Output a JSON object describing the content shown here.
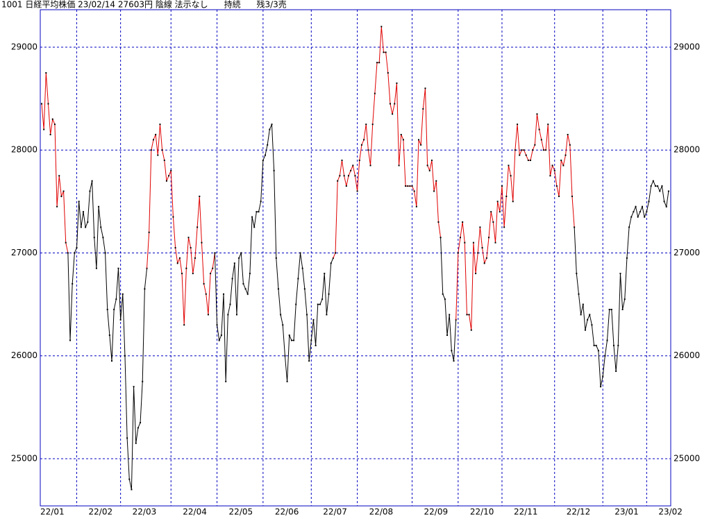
{
  "chart_data": {
    "type": "line",
    "title": "1001 日経平均株価 23/02/14 27603円 陰線 法示なし      持続      残3/3売",
    "series": [
      {
        "color": "#e00000",
        "values": [
          28450,
          28200,
          28750,
          28450,
          28150,
          28300,
          28250,
          27450,
          27750,
          27550,
          27600,
          27100,
          27000
        ]
      },
      {
        "color": "#000000",
        "values": [
          26150,
          26700,
          27000,
          27050,
          27500,
          27250,
          27400,
          27250,
          27300,
          27600,
          27700,
          27150,
          26850,
          27450,
          27250,
          27150,
          27000,
          26450,
          26200,
          25950,
          26450,
          26550,
          26850,
          26350,
          26600,
          26000,
          25200,
          24800,
          24700,
          25700,
          25150,
          25300,
          25350,
          25750,
          26650,
          26850
        ]
      },
      {
        "color": "#e00000",
        "values": [
          27200,
          28000,
          28100,
          28150,
          27950,
          28250,
          28000,
          27900,
          27700,
          27750,
          27800,
          27350,
          27050,
          26900,
          26950,
          26800,
          26300,
          26850,
          27150,
          27050,
          26800,
          26950,
          27250,
          27550,
          27100,
          26700,
          26600,
          26400,
          26800,
          26850,
          27000
        ]
      },
      {
        "color": "#000000",
        "values": [
          26300,
          26150,
          26200,
          26600,
          25750,
          26400,
          26500,
          26750,
          26900,
          26400,
          26950,
          27000,
          26700,
          26650,
          26600,
          26800,
          27350,
          27250,
          27400,
          27400,
          27500,
          27900,
          27950,
          28050,
          28200,
          28250,
          27800,
          26950,
          26650,
          26400,
          26300,
          26000,
          25750,
          26200,
          26150,
          26150,
          26500,
          26750,
          27000,
          26850,
          26650,
          26400,
          25950,
          26150,
          26350,
          26100,
          26500,
          26500,
          26550,
          26800,
          26400,
          26600,
          26900,
          26950
        ]
      },
      {
        "color": "#e00000",
        "values": [
          27000,
          27700,
          27750,
          27900,
          27750,
          27650,
          27750,
          27800,
          27850,
          27750,
          27600,
          27900,
          28050,
          28100,
          28250,
          28000,
          27850,
          28250,
          28550,
          28850,
          28850,
          29200,
          28950,
          28950,
          28750,
          28450,
          28350,
          28450,
          28650,
          27850,
          28150,
          28100,
          27650,
          27650,
          27650,
          27650,
          27600,
          27450,
          28100,
          28050,
          28400,
          28600,
          27850,
          27800,
          27900,
          27600,
          27700,
          27300,
          27150
        ]
      },
      {
        "color": "#000000",
        "values": [
          26600,
          26550,
          26200,
          26400,
          26050,
          25950,
          26350
        ]
      },
      {
        "color": "#e00000",
        "values": [
          27000,
          27150,
          27300,
          27100,
          26400,
          26400,
          26250,
          27100,
          26800,
          27000,
          27250,
          27050,
          26900,
          26950,
          27150,
          27400,
          27300,
          27100,
          27500,
          27400,
          27650,
          27250,
          27550,
          27850,
          27750,
          27500,
          28000,
          28250,
          27950,
          28000,
          28000,
          27950,
          27900,
          27900,
          28000,
          28050,
          28350,
          28200,
          28100,
          28000,
          28000,
          28250,
          27750,
          27850,
          27800,
          27650,
          27550,
          27900,
          27850,
          27950,
          28150,
          28050,
          27550,
          27250
        ]
      },
      {
        "color": "#000000",
        "values": [
          26800,
          26600,
          26400,
          26500,
          26250,
          26350,
          26400,
          26300,
          26100,
          26100,
          26050,
          25700,
          25800,
          26000,
          26150,
          26450,
          26450,
          26100,
          25850,
          26100,
          26800,
          26450,
          26550,
          26950,
          27250,
          27350,
          27400,
          27450,
          27350,
          27400,
          27450,
          27350,
          27400,
          27500,
          27650,
          27700,
          27650,
          27650,
          27600,
          27650,
          27500,
          27450,
          27600
        ]
      }
    ],
    "xlim": [
      -0.63,
      286.98
    ],
    "xticks": [
      {
        "value": -6,
        "label": "22/01"
      },
      {
        "value": 16,
        "label": "22/02"
      },
      {
        "value": 36,
        "label": "22/03"
      },
      {
        "value": 59,
        "label": "22/04"
      },
      {
        "value": 80,
        "label": "22/05"
      },
      {
        "value": 101,
        "label": "22/06"
      },
      {
        "value": 123,
        "label": "22/07"
      },
      {
        "value": 144,
        "label": "22/08"
      },
      {
        "value": 169,
        "label": "22/09"
      },
      {
        "value": 190,
        "label": "22/10"
      },
      {
        "value": 210,
        "label": "22/11"
      },
      {
        "value": 234,
        "label": "22/12"
      },
      {
        "value": 256,
        "label": "23/01"
      },
      {
        "value": 276,
        "label": "23/02"
      }
    ],
    "ylim": [
      24541,
      29364
    ],
    "yticks": [
      25000,
      26000,
      27000,
      28000,
      29000
    ],
    "grid": true,
    "grid_color": "#0000c0",
    "axis_color": "#0000c0",
    "marker_color": "#000000"
  }
}
